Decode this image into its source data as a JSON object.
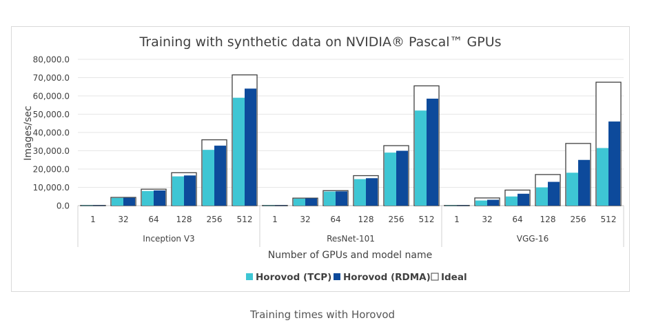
{
  "caption": "Training times with Horovod",
  "chart_data": {
    "type": "bar",
    "title": "Training with synthetic data on NVIDIA® Pascal™ GPUs",
    "ylabel": "Images/sec",
    "xlabel": "Number of GPUs and model name",
    "ylim": [
      0,
      80000
    ],
    "yticks": [
      "0.0",
      "10,000.0",
      "20,000.0",
      "30,000.0",
      "40,000.0",
      "50,000.0",
      "60,000.0",
      "70,000.0",
      "80,000.0"
    ],
    "grid": true,
    "legend_position": "bottom",
    "groups": [
      {
        "name": "Inception V3",
        "categories": [
          "1",
          "32",
          "64",
          "128",
          "256",
          "512"
        ],
        "tcp": [
          130,
          4200,
          8000,
          16000,
          30500,
          59000
        ],
        "rdma": [
          140,
          4300,
          8300,
          16500,
          32800,
          64000
        ],
        "ideal": [
          140,
          4500,
          9000,
          18000,
          36000,
          71500
        ]
      },
      {
        "name": "ResNet-101",
        "categories": [
          "1",
          "32",
          "64",
          "128",
          "256",
          "512"
        ],
        "tcp": [
          120,
          3800,
          7700,
          14500,
          29000,
          52000
        ],
        "rdma": [
          128,
          4000,
          7800,
          15000,
          30000,
          58500
        ],
        "ideal": [
          128,
          4100,
          8200,
          16400,
          32800,
          65500
        ]
      },
      {
        "name": "VGG-16",
        "categories": [
          "1",
          "32",
          "64",
          "128",
          "256",
          "512"
        ],
        "tcp": [
          110,
          2800,
          5000,
          10000,
          18000,
          31500
        ],
        "rdma": [
          132,
          3200,
          6500,
          13000,
          25000,
          46000
        ],
        "ideal": [
          132,
          4200,
          8500,
          17000,
          34000,
          67500
        ]
      }
    ],
    "series": [
      {
        "key": "tcp",
        "name": "Horovod (TCP)",
        "color": "#3ec6d4"
      },
      {
        "key": "rdma",
        "name": "Horovod (RDMA)",
        "color": "#0d4a9b"
      },
      {
        "key": "ideal",
        "name": "Ideal",
        "color": "#ffffff"
      }
    ]
  }
}
